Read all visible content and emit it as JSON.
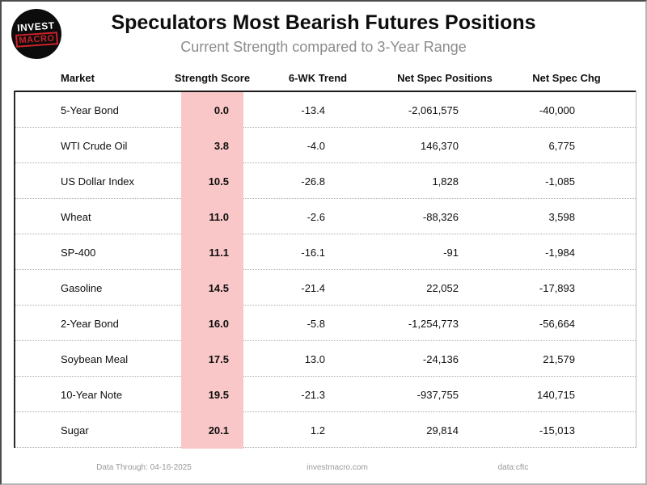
{
  "logo": {
    "line1": "INVEST",
    "line2": "MACRO"
  },
  "header": {
    "title": "Speculators Most Bearish Futures Positions",
    "subtitle": "Current Strength compared to 3-Year Range"
  },
  "chart_data": {
    "type": "table",
    "title": "Speculators Most Bearish Futures Positions",
    "subtitle": "Current Strength compared to 3-Year Range",
    "columns": [
      "Market",
      "Strength Score",
      "6-WK Trend",
      "Net Spec Positions",
      "Net Spec Chg"
    ],
    "rows": [
      {
        "market": "5-Year Bond",
        "score": "0.0",
        "trend": "-13.4",
        "positions": "-2,061,575",
        "chg": "-40,000"
      },
      {
        "market": "WTI Crude Oil",
        "score": "3.8",
        "trend": "-4.0",
        "positions": "146,370",
        "chg": "6,775"
      },
      {
        "market": "US Dollar Index",
        "score": "10.5",
        "trend": "-26.8",
        "positions": "1,828",
        "chg": "-1,085"
      },
      {
        "market": "Wheat",
        "score": "11.0",
        "trend": "-2.6",
        "positions": "-88,326",
        "chg": "3,598"
      },
      {
        "market": "SP-400",
        "score": "11.1",
        "trend": "-16.1",
        "positions": "-91",
        "chg": "-1,984"
      },
      {
        "market": "Gasoline",
        "score": "14.5",
        "trend": "-21.4",
        "positions": "22,052",
        "chg": "-17,893"
      },
      {
        "market": "2-Year Bond",
        "score": "16.0",
        "trend": "-5.8",
        "positions": "-1,254,773",
        "chg": "-56,664"
      },
      {
        "market": "Soybean Meal",
        "score": "17.5",
        "trend": "13.0",
        "positions": "-24,136",
        "chg": "21,579"
      },
      {
        "market": "10-Year Note",
        "score": "19.5",
        "trend": "-21.3",
        "positions": "-937,755",
        "chg": "140,715"
      },
      {
        "market": "Sugar",
        "score": "20.1",
        "trend": "1.2",
        "positions": "29,814",
        "chg": "-15,013"
      }
    ],
    "layout_hints": {
      "score_column_highlighted": true,
      "grid": "dotted-row-separators",
      "legend": "none"
    }
  },
  "footer": {
    "data_through": "Data Through: 04-16-2025",
    "site": "investmacro.com",
    "source": "data:cftc"
  },
  "colors": {
    "score_band": "#f9c7c7",
    "accent_red": "#cc2229"
  }
}
